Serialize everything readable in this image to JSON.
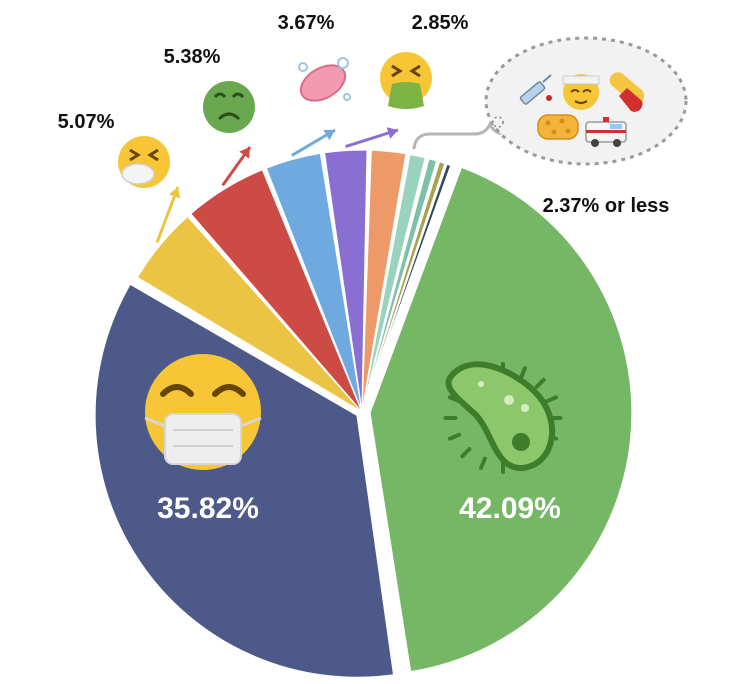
{
  "chart_data": {
    "type": "pie",
    "title": "",
    "slices": [
      {
        "value": 42.09,
        "label": "42.09%",
        "color": "#76b766",
        "icon": "microbe-icon"
      },
      {
        "value": 35.82,
        "label": "35.82%",
        "color": "#4d5a89",
        "icon": "face-with-medical-mask-icon"
      },
      {
        "value": 5.07,
        "label": "5.07%",
        "color": "#ecc443",
        "icon": "sneezing-face-icon"
      },
      {
        "value": 5.38,
        "label": "5.38%",
        "color": "#cc4b45",
        "icon": "nauseated-face-icon"
      },
      {
        "value": 3.67,
        "label": "3.67%",
        "color": "#6eaadf",
        "icon": "soap-icon"
      },
      {
        "value": 2.85,
        "label": "2.85%",
        "color": "#8a6fd3",
        "icon": "vomiting-face-icon"
      },
      {
        "value": 2.37,
        "color": "#ee9a68"
      },
      {
        "value": 1.2,
        "color": "#9ad3bd"
      },
      {
        "value": 0.7,
        "color": "#7fc0a8"
      },
      {
        "value": 0.5,
        "color": "#a8a24e"
      },
      {
        "value": 0.35,
        "color": "#2f4860"
      }
    ],
    "group_label": "2.37% or less",
    "group_icons": [
      "syringe-icon",
      "face-with-head-bandage-icon",
      "pill-icon",
      "sponge-icon",
      "ambulance-icon"
    ],
    "legend": "none"
  }
}
